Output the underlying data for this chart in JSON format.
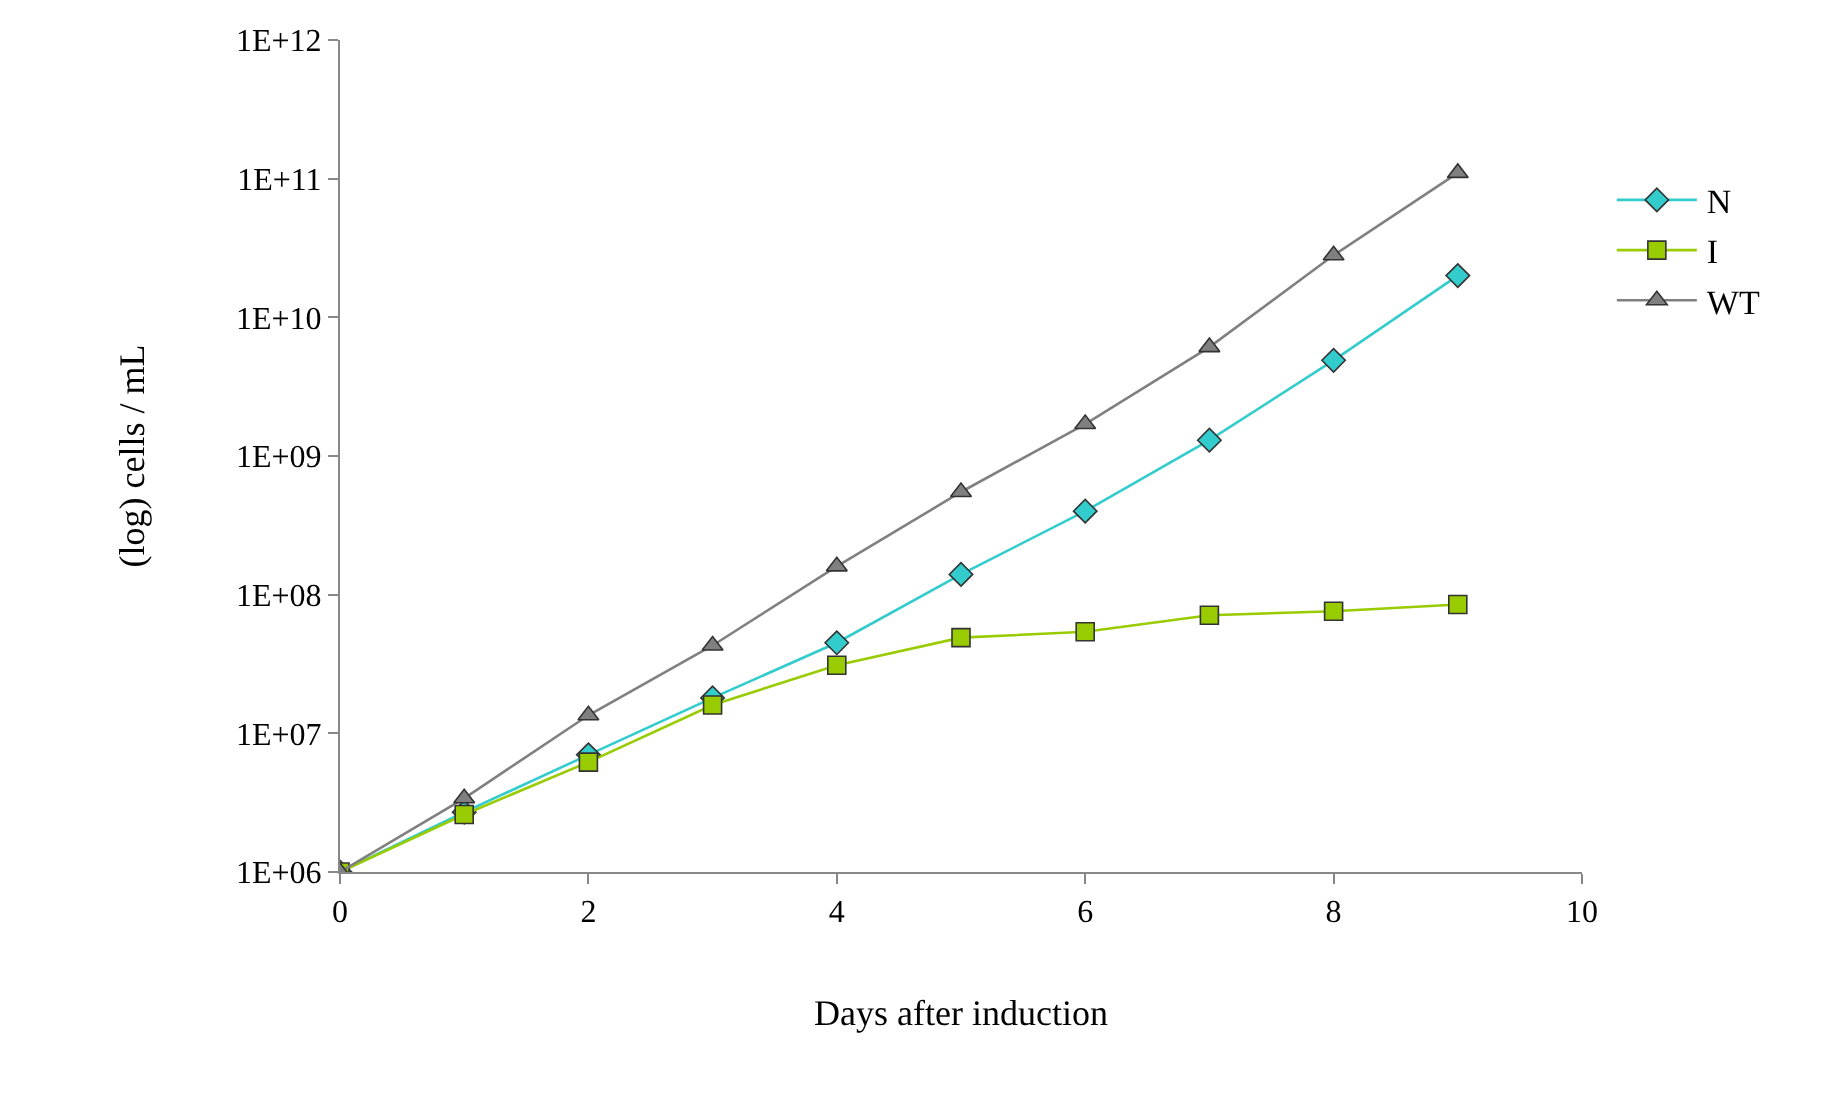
{
  "chart_data": {
    "type": "line",
    "xlabel": "Days after induction",
    "ylabel": "(log) cells / mL",
    "x": [
      0,
      1,
      2,
      3,
      4,
      5,
      6,
      7,
      8,
      9
    ],
    "series": [
      {
        "name": "N",
        "color": "#33cccc",
        "marker": "diamond",
        "values": [
          1000000,
          2700000,
          7000000,
          18000000,
          45000000,
          140000000,
          400000000,
          1300000000,
          4900000000,
          20000000000
        ]
      },
      {
        "name": "I",
        "color": "#99cc00",
        "marker": "square",
        "values": [
          1000000,
          2600000,
          6200000,
          16000000,
          31000000,
          49000000,
          54000000,
          71000000,
          76000000,
          85000000
        ]
      },
      {
        "name": "WT",
        "color": "#808080",
        "marker": "triangle",
        "values": [
          1000000,
          3400000,
          13500000,
          43000000,
          160000000,
          550000000,
          1700000000,
          6100000000,
          28000000000,
          110000000000
        ]
      }
    ],
    "log": "y",
    "xlim": [
      0,
      10
    ],
    "xticks": [
      0,
      2,
      4,
      6,
      8,
      10
    ],
    "ylim": [
      1000000,
      1000000000000
    ],
    "yticks": [
      {
        "value": 1000000,
        "label": "1E+06"
      },
      {
        "value": 10000000,
        "label": "1E+07"
      },
      {
        "value": 100000000,
        "label": "1E+08"
      },
      {
        "value": 1000000000,
        "label": "1E+09"
      },
      {
        "value": 10000000000,
        "label": "1E+10"
      },
      {
        "value": 100000000000,
        "label": "1E+11"
      },
      {
        "value": 1000000000000,
        "label": "1E+12"
      }
    ],
    "grid": false,
    "legend": "right"
  }
}
